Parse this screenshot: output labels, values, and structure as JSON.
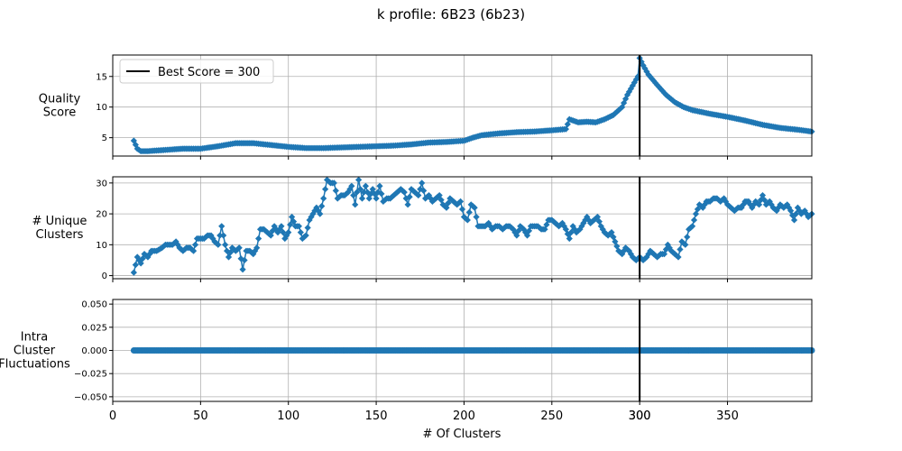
{
  "chart_data": {
    "type": "line",
    "title": "k profile: 6B23 (6b23)",
    "xlabel": "# Of Clusters",
    "xlim": [
      0,
      398
    ],
    "x_ticks": [
      0,
      50,
      100,
      150,
      200,
      250,
      300,
      350
    ],
    "x_extra_tick": 300,
    "best_score_line": {
      "x": 300,
      "label": "Best Score = 300",
      "color": "#000000"
    },
    "series_color": "#1f77b4",
    "legend_location": "upper-left of top panel",
    "grid": true,
    "panels": [
      {
        "ylabel": [
          "Quality",
          "Score"
        ],
        "ylim": [
          2,
          18.5
        ],
        "yticks": [
          5,
          10,
          15
        ],
        "marker": "diamond",
        "knots": [
          [
            12,
            4.5
          ],
          [
            14,
            3.2
          ],
          [
            16,
            2.8
          ],
          [
            20,
            2.8
          ],
          [
            30,
            3.0
          ],
          [
            40,
            3.2
          ],
          [
            50,
            3.2
          ],
          [
            60,
            3.6
          ],
          [
            70,
            4.1
          ],
          [
            80,
            4.1
          ],
          [
            90,
            3.8
          ],
          [
            100,
            3.5
          ],
          [
            110,
            3.3
          ],
          [
            120,
            3.3
          ],
          [
            130,
            3.4
          ],
          [
            140,
            3.5
          ],
          [
            150,
            3.6
          ],
          [
            160,
            3.7
          ],
          [
            170,
            3.9
          ],
          [
            180,
            4.2
          ],
          [
            190,
            4.3
          ],
          [
            200,
            4.5
          ],
          [
            205,
            5.0
          ],
          [
            210,
            5.4
          ],
          [
            220,
            5.7
          ],
          [
            230,
            5.9
          ],
          [
            240,
            6.0
          ],
          [
            250,
            6.2
          ],
          [
            258,
            6.4
          ],
          [
            260,
            8.0
          ],
          [
            265,
            7.5
          ],
          [
            270,
            7.6
          ],
          [
            275,
            7.5
          ],
          [
            280,
            8.0
          ],
          [
            285,
            8.7
          ],
          [
            290,
            10.0
          ],
          [
            293,
            12.0
          ],
          [
            296,
            13.5
          ],
          [
            299,
            15.0
          ],
          [
            300,
            18.0
          ],
          [
            302,
            16.8
          ],
          [
            305,
            15.3
          ],
          [
            310,
            13.6
          ],
          [
            315,
            12.0
          ],
          [
            320,
            10.8
          ],
          [
            325,
            10.0
          ],
          [
            330,
            9.5
          ],
          [
            335,
            9.2
          ],
          [
            340,
            8.9
          ],
          [
            350,
            8.4
          ],
          [
            360,
            7.8
          ],
          [
            370,
            7.1
          ],
          [
            380,
            6.6
          ],
          [
            390,
            6.3
          ],
          [
            398,
            6.0
          ]
        ]
      },
      {
        "ylabel": [
          "# Unique",
          "Clusters"
        ],
        "ylim": [
          -1,
          32
        ],
        "yticks": [
          0,
          10,
          20,
          30
        ],
        "marker": "diamond",
        "knots": [
          [
            12,
            1
          ],
          [
            14,
            6
          ],
          [
            16,
            4
          ],
          [
            18,
            7
          ],
          [
            20,
            6
          ],
          [
            22,
            8
          ],
          [
            25,
            8
          ],
          [
            28,
            9
          ],
          [
            30,
            10
          ],
          [
            32,
            10
          ],
          [
            34,
            10
          ],
          [
            36,
            11
          ],
          [
            38,
            9
          ],
          [
            40,
            8
          ],
          [
            42,
            9
          ],
          [
            44,
            9
          ],
          [
            46,
            8
          ],
          [
            48,
            12
          ],
          [
            50,
            12
          ],
          [
            52,
            12
          ],
          [
            54,
            13
          ],
          [
            56,
            13
          ],
          [
            58,
            11
          ],
          [
            60,
            10
          ],
          [
            62,
            16
          ],
          [
            64,
            10
          ],
          [
            66,
            6
          ],
          [
            68,
            9
          ],
          [
            70,
            8
          ],
          [
            72,
            9
          ],
          [
            74,
            2
          ],
          [
            76,
            8
          ],
          [
            78,
            8
          ],
          [
            80,
            7
          ],
          [
            82,
            9
          ],
          [
            84,
            15
          ],
          [
            86,
            15
          ],
          [
            88,
            14
          ],
          [
            90,
            13
          ],
          [
            92,
            16
          ],
          [
            94,
            14
          ],
          [
            96,
            16
          ],
          [
            98,
            12
          ],
          [
            100,
            14
          ],
          [
            102,
            19
          ],
          [
            104,
            16
          ],
          [
            106,
            16
          ],
          [
            108,
            12
          ],
          [
            110,
            13
          ],
          [
            112,
            18
          ],
          [
            114,
            20
          ],
          [
            116,
            22
          ],
          [
            118,
            20
          ],
          [
            120,
            25
          ],
          [
            122,
            31
          ],
          [
            124,
            30
          ],
          [
            126,
            30
          ],
          [
            128,
            25
          ],
          [
            130,
            26
          ],
          [
            132,
            26
          ],
          [
            134,
            27
          ],
          [
            136,
            29
          ],
          [
            138,
            23
          ],
          [
            140,
            31
          ],
          [
            142,
            25
          ],
          [
            144,
            29
          ],
          [
            146,
            25
          ],
          [
            148,
            28
          ],
          [
            150,
            25
          ],
          [
            152,
            29
          ],
          [
            154,
            24
          ],
          [
            156,
            25
          ],
          [
            158,
            25
          ],
          [
            160,
            26
          ],
          [
            162,
            27
          ],
          [
            164,
            28
          ],
          [
            166,
            27
          ],
          [
            168,
            23
          ],
          [
            170,
            28
          ],
          [
            172,
            27
          ],
          [
            174,
            26
          ],
          [
            176,
            30
          ],
          [
            178,
            25
          ],
          [
            180,
            26
          ],
          [
            182,
            24
          ],
          [
            184,
            25
          ],
          [
            186,
            26
          ],
          [
            188,
            23
          ],
          [
            190,
            22
          ],
          [
            192,
            25
          ],
          [
            194,
            24
          ],
          [
            196,
            23
          ],
          [
            198,
            24
          ],
          [
            200,
            19
          ],
          [
            202,
            18
          ],
          [
            204,
            23
          ],
          [
            206,
            22
          ],
          [
            208,
            16
          ],
          [
            210,
            16
          ],
          [
            212,
            16
          ],
          [
            214,
            17
          ],
          [
            216,
            15
          ],
          [
            218,
            16
          ],
          [
            220,
            16
          ],
          [
            222,
            15
          ],
          [
            224,
            16
          ],
          [
            226,
            16
          ],
          [
            228,
            15
          ],
          [
            230,
            13
          ],
          [
            232,
            16
          ],
          [
            234,
            15
          ],
          [
            236,
            13
          ],
          [
            238,
            16
          ],
          [
            240,
            16
          ],
          [
            242,
            16
          ],
          [
            244,
            15
          ],
          [
            246,
            15
          ],
          [
            248,
            18
          ],
          [
            250,
            18
          ],
          [
            252,
            17
          ],
          [
            254,
            16
          ],
          [
            256,
            17
          ],
          [
            258,
            15
          ],
          [
            260,
            12
          ],
          [
            262,
            16
          ],
          [
            264,
            14
          ],
          [
            266,
            15
          ],
          [
            268,
            17
          ],
          [
            270,
            19
          ],
          [
            272,
            17
          ],
          [
            274,
            18
          ],
          [
            276,
            19
          ],
          [
            278,
            16
          ],
          [
            280,
            14
          ],
          [
            282,
            13
          ],
          [
            284,
            14
          ],
          [
            286,
            11
          ],
          [
            288,
            8
          ],
          [
            290,
            7
          ],
          [
            292,
            9
          ],
          [
            294,
            8
          ],
          [
            296,
            6
          ],
          [
            298,
            5
          ],
          [
            300,
            6
          ],
          [
            302,
            5
          ],
          [
            304,
            6
          ],
          [
            306,
            8
          ],
          [
            308,
            7
          ],
          [
            310,
            6
          ],
          [
            312,
            7
          ],
          [
            314,
            7
          ],
          [
            316,
            10
          ],
          [
            318,
            8
          ],
          [
            320,
            7
          ],
          [
            322,
            6
          ],
          [
            324,
            11
          ],
          [
            326,
            10
          ],
          [
            328,
            15
          ],
          [
            330,
            16
          ],
          [
            332,
            20
          ],
          [
            334,
            23
          ],
          [
            336,
            22
          ],
          [
            338,
            24
          ],
          [
            340,
            24
          ],
          [
            342,
            25
          ],
          [
            344,
            25
          ],
          [
            346,
            24
          ],
          [
            348,
            25
          ],
          [
            350,
            23
          ],
          [
            352,
            22
          ],
          [
            354,
            21
          ],
          [
            356,
            22
          ],
          [
            358,
            22
          ],
          [
            360,
            24
          ],
          [
            362,
            24
          ],
          [
            364,
            22
          ],
          [
            366,
            24
          ],
          [
            368,
            23
          ],
          [
            370,
            26
          ],
          [
            372,
            23
          ],
          [
            374,
            24
          ],
          [
            376,
            22
          ],
          [
            378,
            21
          ],
          [
            380,
            23
          ],
          [
            382,
            22
          ],
          [
            384,
            23
          ],
          [
            386,
            21
          ],
          [
            388,
            18
          ],
          [
            390,
            22
          ],
          [
            392,
            20
          ],
          [
            394,
            21
          ],
          [
            396,
            19
          ],
          [
            398,
            20
          ]
        ]
      },
      {
        "ylabel": [
          "Intra",
          "Cluster",
          "Fluctuations"
        ],
        "ylim": [
          -0.055,
          0.055
        ],
        "yticks": [
          -0.05,
          -0.025,
          0.0,
          0.025,
          0.05
        ],
        "ytick_labels": [
          "−0.050",
          "−0.025",
          "0.000",
          "0.025",
          "0.050"
        ],
        "marker": "circle",
        "knots": [
          [
            12,
            0.0
          ],
          [
            398,
            0.0
          ]
        ]
      }
    ]
  }
}
